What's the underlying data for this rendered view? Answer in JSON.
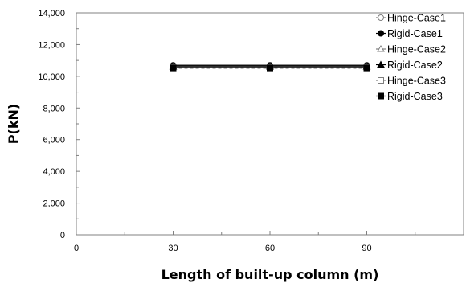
{
  "chart_data": {
    "type": "line",
    "title": "",
    "xlabel": "Length of built-up column (m)",
    "ylabel": "P(kN)",
    "xlim": [
      0,
      120
    ],
    "ylim": [
      0,
      14000
    ],
    "x_ticks": [
      "0",
      "30",
      "60",
      "90"
    ],
    "x_tick_values": [
      0,
      30,
      60,
      90
    ],
    "y_ticks": [
      "0",
      "2,000",
      "4,000",
      "6,000",
      "8,000",
      "10,000",
      "12,000",
      "14,000"
    ],
    "y_tick_values": [
      0,
      2000,
      4000,
      6000,
      8000,
      10000,
      12000,
      14000
    ],
    "grid": false,
    "legend_position": "top-right",
    "x": [
      30,
      60,
      90
    ],
    "series": [
      {
        "name": "Hinge-Case1",
        "values": [
          10700,
          10700,
          10700
        ],
        "marker": "circle-open",
        "line": "solid",
        "color": "#7f7f7f"
      },
      {
        "name": "Rigid-Case1",
        "values": [
          10680,
          10680,
          10680
        ],
        "marker": "circle-filled",
        "line": "solid",
        "color": "#000000"
      },
      {
        "name": "Hinge-Case2",
        "values": [
          10620,
          10620,
          10620
        ],
        "marker": "triangle-open",
        "line": "solid",
        "color": "#7f7f7f"
      },
      {
        "name": "Rigid-Case2",
        "values": [
          10600,
          10600,
          10600
        ],
        "marker": "triangle-filled",
        "line": "solid",
        "color": "#000000"
      },
      {
        "name": "Hinge-Case3",
        "values": [
          10540,
          10540,
          10540
        ],
        "marker": "square-open",
        "line": "solid",
        "color": "#7f7f7f"
      },
      {
        "name": "Rigid-Case3",
        "values": [
          10520,
          10520,
          10520
        ],
        "marker": "square-filled",
        "line": "dashed",
        "color": "#000000"
      }
    ]
  }
}
